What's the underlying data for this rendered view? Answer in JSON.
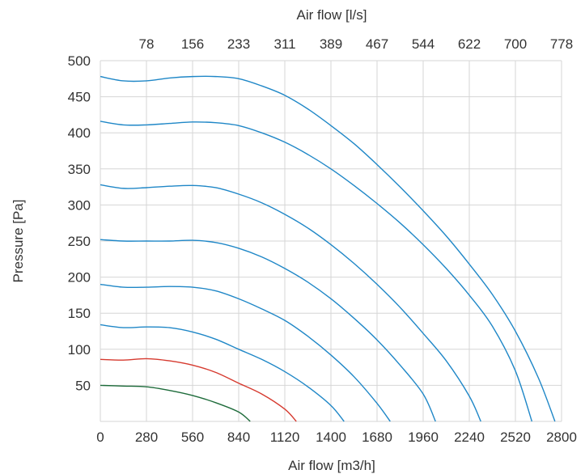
{
  "chart_data": {
    "type": "line",
    "xlabel": "Air flow [m3/h]",
    "x2label": "Air flow [l/s]",
    "ylabel": "Pressure [Pa]",
    "xlim": [
      0,
      2800
    ],
    "ylim": [
      0,
      500
    ],
    "grid": true,
    "x_ticks": [
      "0",
      "280",
      "560",
      "840",
      "1120",
      "1400",
      "1680",
      "1960",
      "2240",
      "2520",
      "2800"
    ],
    "x2_ticks": [
      "78",
      "156",
      "233",
      "311",
      "389",
      "467",
      "544",
      "622",
      "700",
      "778"
    ],
    "y_ticks": [
      "50",
      "100",
      "150",
      "200",
      "250",
      "300",
      "350",
      "400",
      "450",
      "500"
    ],
    "colors": {
      "blue": "#1f87c7",
      "red": "#d63a2f",
      "green": "#1d6b3a",
      "grid": "#d6d6d6",
      "text": "#333333"
    },
    "series": [
      {
        "color": "#1d6b3a",
        "x": [
          0,
          140,
          280,
          420,
          560,
          700,
          840,
          910
        ],
        "y": [
          50,
          49,
          48,
          43,
          36,
          26,
          13,
          0
        ]
      },
      {
        "color": "#d63a2f",
        "x": [
          0,
          140,
          280,
          420,
          560,
          700,
          840,
          980,
          1120,
          1190
        ],
        "y": [
          86,
          85,
          87,
          84,
          78,
          68,
          53,
          38,
          17,
          0
        ]
      },
      {
        "color": "#1f87c7",
        "x": [
          0,
          140,
          280,
          420,
          560,
          700,
          840,
          980,
          1120,
          1260,
          1400,
          1480
        ],
        "y": [
          134,
          130,
          131,
          130,
          124,
          114,
          100,
          86,
          69,
          48,
          22,
          0
        ]
      },
      {
        "color": "#1f87c7",
        "x": [
          0,
          140,
          280,
          420,
          560,
          700,
          840,
          980,
          1120,
          1260,
          1400,
          1540,
          1680,
          1760
        ],
        "y": [
          190,
          186,
          186,
          187,
          186,
          181,
          170,
          156,
          140,
          118,
          92,
          62,
          25,
          0
        ]
      },
      {
        "color": "#1f87c7",
        "x": [
          0,
          140,
          280,
          420,
          560,
          700,
          840,
          980,
          1120,
          1260,
          1400,
          1540,
          1680,
          1820,
          1960,
          2035
        ],
        "y": [
          252,
          250,
          250,
          250,
          251,
          248,
          240,
          228,
          212,
          193,
          170,
          143,
          113,
          78,
          38,
          0
        ]
      },
      {
        "color": "#1f87c7",
        "x": [
          0,
          140,
          280,
          420,
          560,
          700,
          840,
          980,
          1120,
          1260,
          1400,
          1540,
          1680,
          1820,
          1960,
          2100,
          2240,
          2310
        ],
        "y": [
          328,
          323,
          324,
          326,
          327,
          324,
          315,
          303,
          287,
          268,
          245,
          219,
          190,
          158,
          122,
          84,
          35,
          0
        ]
      },
      {
        "color": "#1f87c7",
        "x": [
          0,
          140,
          280,
          420,
          560,
          700,
          840,
          980,
          1120,
          1260,
          1400,
          1540,
          1680,
          1820,
          1960,
          2100,
          2240,
          2380,
          2520,
          2620
        ],
        "y": [
          416,
          411,
          411,
          413,
          415,
          414,
          410,
          400,
          387,
          370,
          350,
          327,
          302,
          275,
          245,
          212,
          175,
          132,
          70,
          0
        ]
      },
      {
        "color": "#1f87c7",
        "x": [
          0,
          140,
          280,
          420,
          560,
          700,
          840,
          980,
          1120,
          1260,
          1400,
          1540,
          1680,
          1820,
          1960,
          2100,
          2240,
          2380,
          2520,
          2660,
          2760
        ],
        "y": [
          478,
          472,
          472,
          476,
          478,
          478,
          475,
          465,
          452,
          433,
          410,
          385,
          356,
          325,
          292,
          257,
          218,
          176,
          125,
          60,
          0
        ]
      }
    ]
  }
}
